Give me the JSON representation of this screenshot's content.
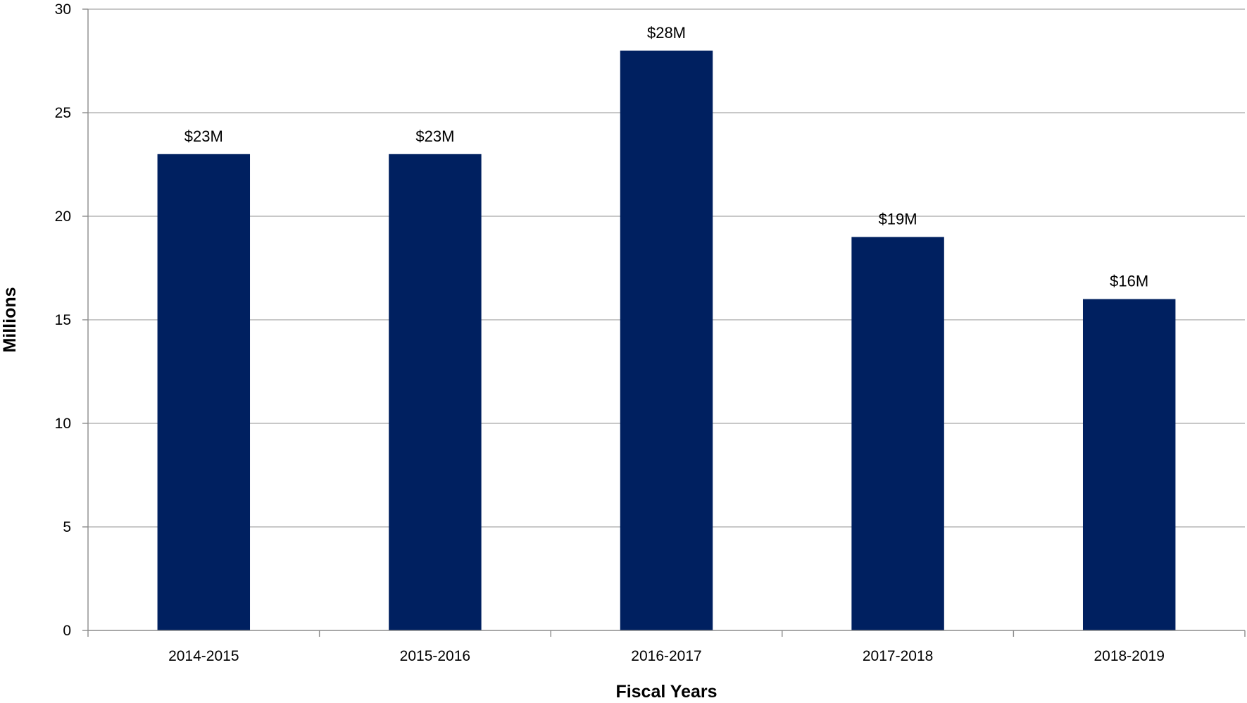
{
  "chart_data": {
    "type": "bar",
    "categories": [
      "2014-2015",
      "2015-2016",
      "2016-2017",
      "2017-2018",
      "2018-2019"
    ],
    "values": [
      23,
      23,
      28,
      19,
      16
    ],
    "data_labels": [
      "$23M",
      "$23M",
      "$28M",
      "$19M",
      "$16M"
    ],
    "title": "",
    "xlabel": "Fiscal Years",
    "ylabel": "Millions",
    "ylim": [
      0,
      30
    ],
    "yticks": [
      0,
      5,
      10,
      15,
      20,
      25,
      30
    ],
    "grid": true,
    "legend": "none",
    "bar_color": "#002060"
  }
}
